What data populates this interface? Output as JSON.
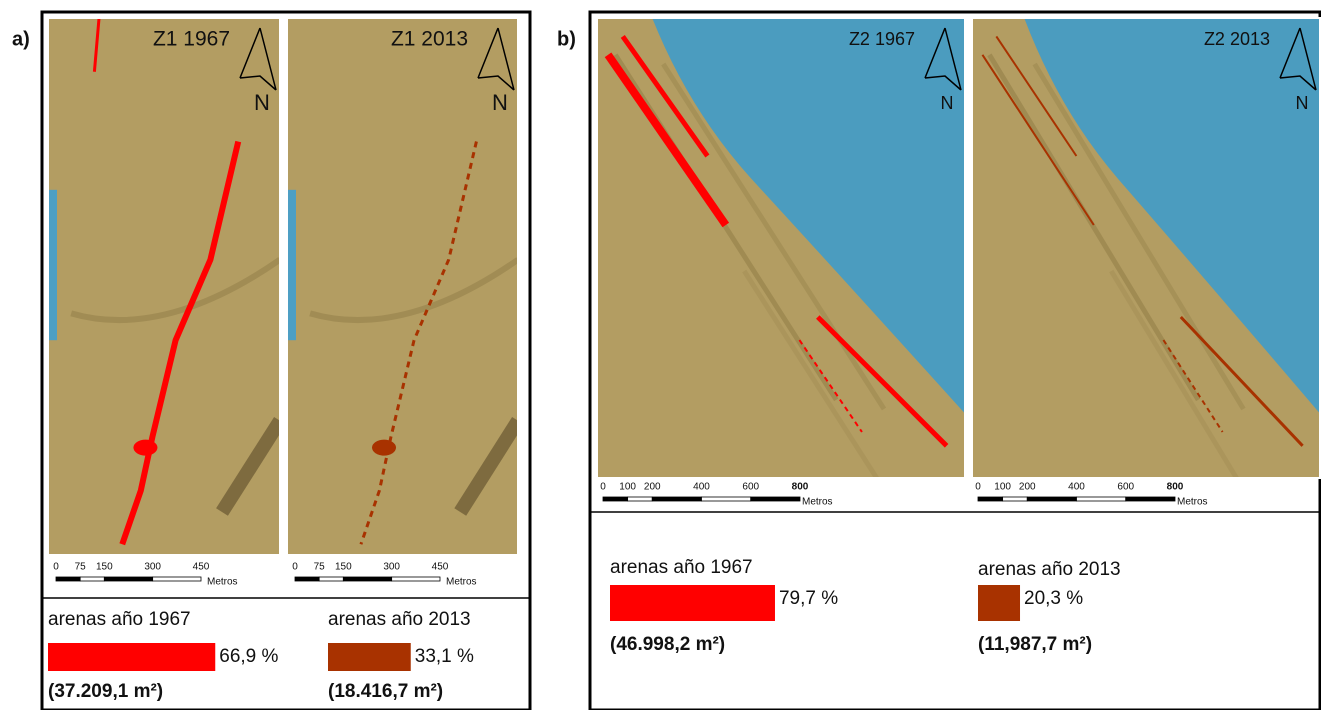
{
  "panels": [
    {
      "label": "a)",
      "maps": [
        {
          "title": "Z1 1967",
          "north": "N",
          "scale_ticks": [
            0,
            75,
            150,
            300,
            450
          ],
          "scale_unit": "Metros"
        },
        {
          "title": "Z1 2013",
          "north": "N",
          "scale_ticks": [
            0,
            75,
            150,
            300,
            450
          ],
          "scale_unit": "Metros"
        }
      ],
      "legend": [
        {
          "label": "arenas año 1967",
          "color": "#ff0000",
          "percent": 66.9,
          "percent_label": "66,9 %",
          "area": "(37.209,1 m²)"
        },
        {
          "label": "arenas año 2013",
          "color": "#a83200",
          "percent": 33.1,
          "percent_label": "33,1 %",
          "area": "(18.416,7 m²)"
        }
      ]
    },
    {
      "label": "b)",
      "maps": [
        {
          "title": "Z2 1967",
          "north": "N",
          "scale_ticks": [
            0,
            100,
            200,
            400,
            600,
            800
          ],
          "scale_unit": "Metros"
        },
        {
          "title": "Z2 2013",
          "north": "N",
          "scale_ticks": [
            0,
            100,
            200,
            400,
            600,
            800
          ],
          "scale_unit": "Metros"
        }
      ],
      "legend": [
        {
          "label": "arenas año 1967",
          "color": "#ff0000",
          "percent": 79.7,
          "percent_label": "79,7 %",
          "area": "(46.998,2 m²)"
        },
        {
          "label": "arenas año 2013",
          "color": "#a83200",
          "percent": 20.3,
          "percent_label": "20,3 %",
          "area": "(11,987,7 m²)"
        }
      ]
    }
  ]
}
